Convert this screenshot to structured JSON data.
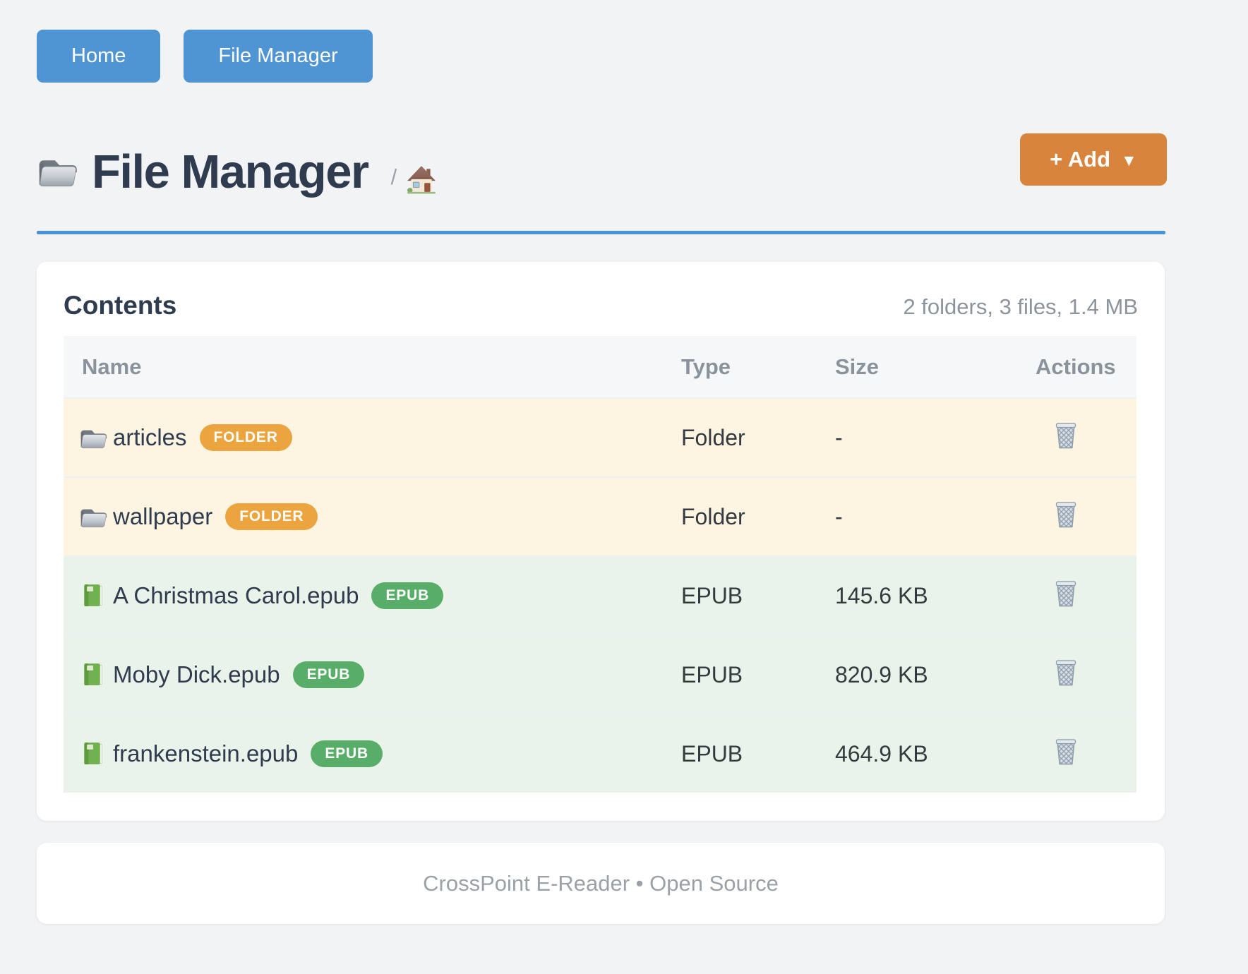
{
  "nav": {
    "buttons": [
      {
        "label": "Home"
      },
      {
        "label": "File Manager"
      }
    ]
  },
  "header": {
    "title": "File Manager",
    "title_icon": "open-folder-icon",
    "breadcrumb_separator": "/",
    "breadcrumb_home_icon": "house-icon",
    "add_button_label": "+ Add",
    "add_button_caret": "▼"
  },
  "contents": {
    "heading": "Contents",
    "summary": "2 folders, 3 files, 1.4 MB",
    "columns": [
      "Name",
      "Type",
      "Size",
      "Actions"
    ],
    "action_icon": "trash-icon",
    "rows": [
      {
        "name": "articles",
        "badge": "FOLDER",
        "type": "Folder",
        "size": "-",
        "kind": "folder",
        "icon": "open-folder-icon"
      },
      {
        "name": "wallpaper",
        "badge": "FOLDER",
        "type": "Folder",
        "size": "-",
        "kind": "folder",
        "icon": "open-folder-icon"
      },
      {
        "name": "A Christmas Carol.epub",
        "badge": "EPUB",
        "type": "EPUB",
        "size": "145.6 KB",
        "kind": "epub",
        "icon": "green-book-icon"
      },
      {
        "name": "Moby Dick.epub",
        "badge": "EPUB",
        "type": "EPUB",
        "size": "820.9 KB",
        "kind": "epub",
        "icon": "green-book-icon"
      },
      {
        "name": "frankenstein.epub",
        "badge": "EPUB",
        "type": "EPUB",
        "size": "464.9 KB",
        "kind": "epub",
        "icon": "green-book-icon"
      }
    ]
  },
  "footer": {
    "text": "CrossPoint E-Reader • Open Source"
  },
  "colors": {
    "nav_blue": "#4f94d3",
    "add_orange": "#d8843d",
    "divider_blue": "#4c92d9",
    "badge_folder": "#eba43e",
    "badge_epub": "#58ae68",
    "folder_row": "#fdf5e1",
    "epub_row": "#e9f3e9"
  }
}
